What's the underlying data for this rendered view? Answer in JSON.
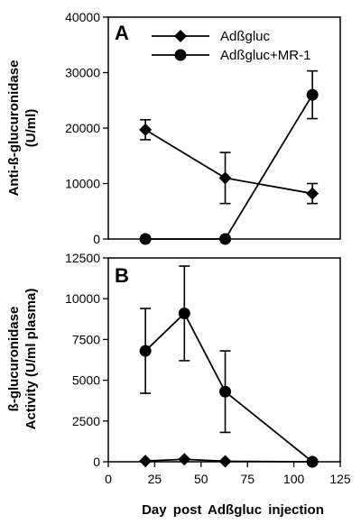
{
  "chart_data": [
    {
      "type": "line",
      "panel_label": "A",
      "ylabel_lines": [
        "Anti-ß-glucuronidase",
        "(U/ml)"
      ],
      "ylim": [
        0,
        40000
      ],
      "yticks": [
        0,
        10000,
        20000,
        30000,
        40000
      ],
      "ytick_labels": [
        "0",
        "10000",
        "20000",
        "30000",
        "40000"
      ],
      "xlim": [
        0,
        125
      ],
      "x": [
        20,
        63,
        110
      ],
      "legend_position": "top-right",
      "series": [
        {
          "name": "Adßgluc",
          "marker": "diamond",
          "values": [
            19700,
            11000,
            8200
          ],
          "errors": [
            1800,
            4600,
            1800
          ]
        },
        {
          "name": "Adßgluc+MR-1",
          "marker": "circle",
          "values": [
            0,
            0,
            26000
          ],
          "errors": [
            0,
            0,
            4300
          ]
        }
      ]
    },
    {
      "type": "line",
      "panel_label": "B",
      "ylabel_lines": [
        "ß-glucuronidase",
        "Activity (U/ml plasma)"
      ],
      "ylim": [
        0,
        12500
      ],
      "yticks": [
        0,
        2500,
        5000,
        7500,
        10000,
        12500
      ],
      "ytick_labels": [
        "0",
        "2500",
        "5000",
        "7500",
        "10000",
        "12500"
      ],
      "xlim": [
        0,
        125
      ],
      "xticks": [
        0,
        25,
        50,
        75,
        100,
        125
      ],
      "xtick_labels": [
        "0",
        "25",
        "50",
        "75",
        "100",
        "125"
      ],
      "xlabel": "Day post Adßgluc injection",
      "series": [
        {
          "marker": "circle",
          "x": [
            20,
            41,
            63,
            110
          ],
          "values": [
            6800,
            9100,
            4300,
            0
          ],
          "errors": [
            2600,
            2900,
            2500,
            0
          ]
        },
        {
          "marker": "diamond",
          "x": [
            20,
            41,
            63,
            110
          ],
          "values": [
            50,
            150,
            30,
            0
          ],
          "errors": [
            0,
            0,
            0,
            0
          ]
        }
      ]
    }
  ]
}
